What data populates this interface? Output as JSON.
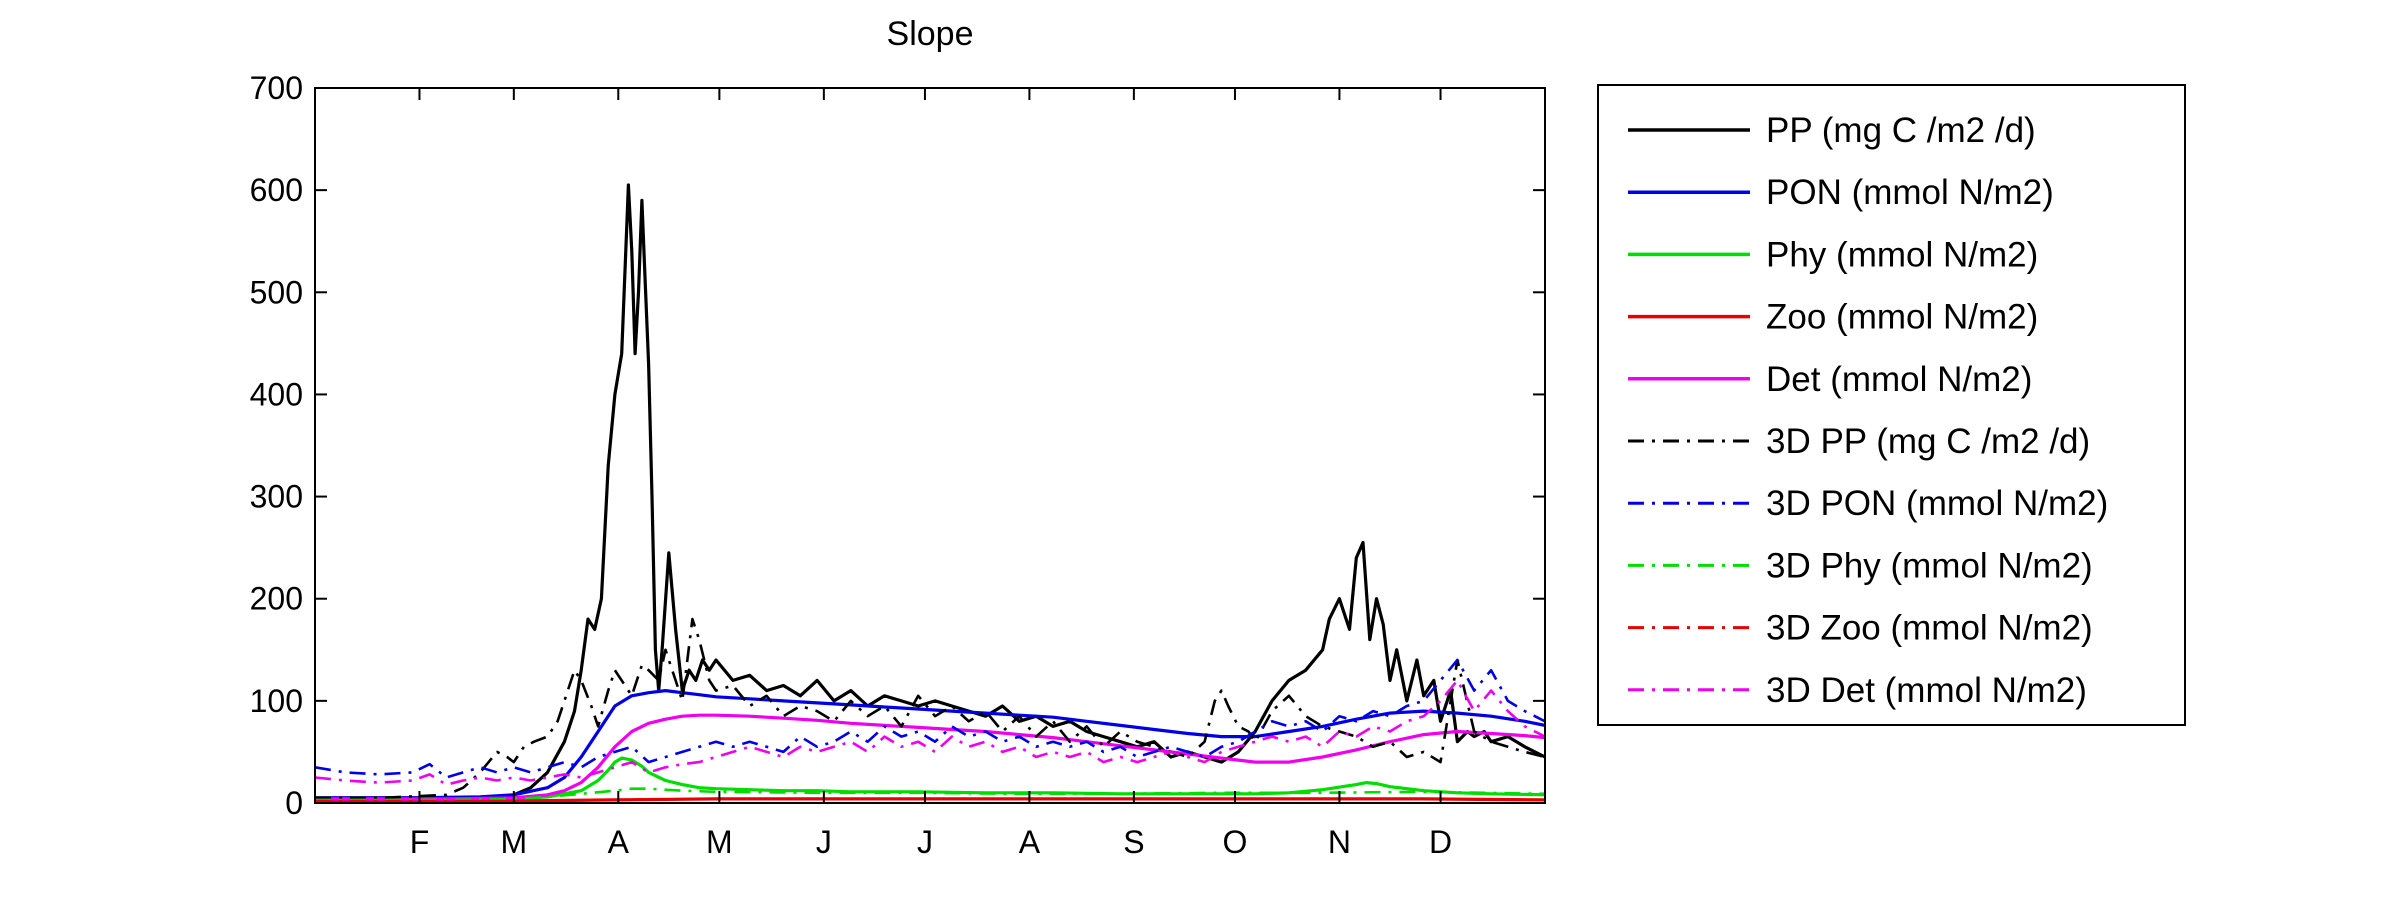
{
  "chart_data": {
    "type": "line",
    "title": "Slope",
    "xlabel": "",
    "ylabel": "",
    "xlim": [
      1,
      366
    ],
    "ylim": [
      0,
      700
    ],
    "yticks": [
      0,
      100,
      200,
      300,
      400,
      500,
      600,
      700
    ],
    "month_ticks": [
      {
        "label": "F",
        "day": 32
      },
      {
        "label": "M",
        "day": 60
      },
      {
        "label": "A",
        "day": 91
      },
      {
        "label": "M",
        "day": 121
      },
      {
        "label": "J",
        "day": 152
      },
      {
        "label": "J",
        "day": 182
      },
      {
        "label": "A",
        "day": 213
      },
      {
        "label": "S",
        "day": 244
      },
      {
        "label": "O",
        "day": 274
      },
      {
        "label": "N",
        "day": 305
      },
      {
        "label": "D",
        "day": 335
      }
    ],
    "grid": false,
    "legend_position": "outside-right",
    "series": [
      {
        "name": "PP (mg C /m2 /d)",
        "color": "#000000",
        "style": "solid",
        "x": [
          1,
          15,
          30,
          45,
          55,
          60,
          65,
          70,
          75,
          78,
          80,
          82,
          84,
          86,
          88,
          90,
          92,
          94,
          95,
          96,
          97,
          98,
          99,
          100,
          101,
          102,
          103,
          104,
          106,
          108,
          110,
          112,
          114,
          116,
          118,
          120,
          125,
          130,
          135,
          140,
          145,
          150,
          155,
          160,
          165,
          170,
          175,
          180,
          185,
          190,
          195,
          200,
          205,
          210,
          215,
          220,
          225,
          230,
          235,
          240,
          245,
          250,
          255,
          260,
          265,
          270,
          275,
          280,
          285,
          290,
          295,
          300,
          302,
          305,
          308,
          310,
          312,
          314,
          316,
          318,
          320,
          322,
          325,
          328,
          330,
          333,
          335,
          338,
          340,
          343,
          345,
          348,
          350,
          355,
          360,
          366
        ],
        "y": [
          5,
          5,
          5,
          5,
          6,
          8,
          15,
          30,
          60,
          90,
          130,
          180,
          170,
          200,
          330,
          400,
          440,
          605,
          540,
          440,
          500,
          590,
          510,
          430,
          300,
          150,
          110,
          150,
          245,
          170,
          110,
          130,
          120,
          140,
          130,
          140,
          120,
          125,
          110,
          115,
          105,
          120,
          100,
          110,
          95,
          105,
          100,
          95,
          100,
          95,
          90,
          85,
          95,
          80,
          85,
          75,
          80,
          70,
          65,
          60,
          55,
          60,
          45,
          50,
          45,
          40,
          50,
          70,
          100,
          120,
          130,
          150,
          180,
          200,
          170,
          240,
          255,
          160,
          200,
          175,
          120,
          150,
          100,
          140,
          105,
          120,
          80,
          110,
          60,
          70,
          65,
          70,
          60,
          65,
          55,
          45
        ]
      },
      {
        "name": "PON (mmol N/m2)",
        "color": "#0000e6",
        "style": "solid",
        "x": [
          1,
          30,
          50,
          60,
          70,
          75,
          80,
          85,
          90,
          95,
          100,
          105,
          110,
          115,
          120,
          130,
          140,
          150,
          160,
          170,
          180,
          190,
          200,
          210,
          220,
          230,
          240,
          250,
          260,
          270,
          280,
          290,
          300,
          310,
          320,
          330,
          340,
          350,
          360,
          366
        ],
        "y": [
          5,
          5,
          6,
          8,
          15,
          25,
          45,
          70,
          95,
          105,
          108,
          110,
          108,
          106,
          104,
          102,
          100,
          98,
          96,
          94,
          92,
          90,
          88,
          86,
          84,
          80,
          76,
          72,
          68,
          65,
          65,
          70,
          75,
          82,
          88,
          90,
          88,
          85,
          80,
          76
        ]
      },
      {
        "name": "Phy (mmol N/m2)",
        "color": "#00dd00",
        "style": "solid",
        "x": [
          1,
          40,
          60,
          70,
          80,
          85,
          88,
          90,
          92,
          95,
          98,
          100,
          105,
          110,
          115,
          120,
          130,
          140,
          150,
          160,
          180,
          200,
          220,
          240,
          260,
          280,
          290,
          300,
          310,
          313,
          316,
          320,
          330,
          340,
          350,
          366
        ],
        "y": [
          3,
          3,
          4,
          6,
          12,
          22,
          32,
          40,
          44,
          42,
          36,
          30,
          22,
          18,
          15,
          14,
          13,
          12,
          12,
          11,
          11,
          10,
          10,
          9,
          9,
          9,
          10,
          13,
          18,
          20,
          19,
          16,
          12,
          10,
          9,
          8
        ]
      },
      {
        "name": "Zoo (mmol N/m2)",
        "color": "#e60000",
        "style": "solid",
        "x": [
          1,
          60,
          90,
          120,
          150,
          180,
          210,
          240,
          270,
          300,
          330,
          366
        ],
        "y": [
          2,
          2,
          3,
          4,
          4,
          4,
          4,
          4,
          4,
          4,
          4,
          3
        ]
      },
      {
        "name": "Det (mmol N/m2)",
        "color": "#ee00ee",
        "style": "solid",
        "x": [
          1,
          40,
          60,
          70,
          75,
          80,
          85,
          90,
          95,
          100,
          105,
          110,
          115,
          120,
          130,
          140,
          150,
          160,
          170,
          180,
          190,
          200,
          210,
          220,
          230,
          240,
          250,
          260,
          270,
          280,
          290,
          300,
          310,
          320,
          330,
          340,
          350,
          360,
          366
        ],
        "y": [
          4,
          4,
          5,
          8,
          12,
          20,
          35,
          55,
          70,
          78,
          82,
          85,
          86,
          86,
          85,
          83,
          81,
          78,
          76,
          74,
          72,
          70,
          67,
          64,
          60,
          56,
          52,
          48,
          44,
          40,
          40,
          45,
          52,
          60,
          67,
          70,
          68,
          66,
          64
        ]
      },
      {
        "name": "3D PP (mg C /m2 /d)",
        "color": "#000000",
        "style": "dashdot",
        "x": [
          1,
          20,
          40,
          45,
          50,
          55,
          58,
          60,
          63,
          66,
          70,
          73,
          75,
          78,
          80,
          83,
          85,
          88,
          90,
          93,
          95,
          98,
          100,
          103,
          105,
          108,
          110,
          113,
          115,
          118,
          120,
          125,
          130,
          135,
          140,
          145,
          150,
          155,
          160,
          165,
          170,
          175,
          180,
          185,
          190,
          195,
          200,
          205,
          210,
          215,
          220,
          225,
          230,
          235,
          240,
          245,
          250,
          255,
          260,
          265,
          268,
          270,
          272,
          275,
          278,
          280,
          285,
          290,
          295,
          300,
          305,
          310,
          315,
          320,
          325,
          330,
          335,
          340,
          345,
          350,
          355,
          360,
          366
        ],
        "y": [
          5,
          5,
          8,
          15,
          30,
          50,
          45,
          40,
          55,
          60,
          65,
          80,
          100,
          130,
          120,
          95,
          75,
          110,
          130,
          115,
          105,
          135,
          130,
          120,
          150,
          120,
          100,
          180,
          160,
          120,
          110,
          115,
          95,
          105,
          85,
          95,
          90,
          80,
          100,
          85,
          95,
          75,
          105,
          85,
          95,
          80,
          90,
          70,
          85,
          65,
          80,
          60,
          75,
          55,
          70,
          60,
          55,
          50,
          45,
          60,
          100,
          110,
          95,
          75,
          70,
          60,
          90,
          105,
          85,
          75,
          70,
          65,
          55,
          60,
          45,
          50,
          40,
          140,
          70,
          60,
          55,
          50,
          45
        ]
      },
      {
        "name": "3D PON (mmol N/m2)",
        "color": "#0000e6",
        "style": "dashdot",
        "x": [
          1,
          10,
          20,
          30,
          35,
          40,
          45,
          50,
          55,
          60,
          65,
          70,
          75,
          80,
          85,
          90,
          95,
          100,
          105,
          110,
          115,
          120,
          125,
          130,
          135,
          140,
          145,
          150,
          155,
          160,
          165,
          170,
          175,
          180,
          185,
          190,
          195,
          200,
          205,
          210,
          215,
          220,
          225,
          230,
          235,
          240,
          245,
          250,
          255,
          260,
          265,
          270,
          275,
          280,
          285,
          290,
          295,
          300,
          305,
          310,
          315,
          320,
          325,
          330,
          335,
          340,
          345,
          350,
          355,
          360,
          366
        ],
        "y": [
          35,
          30,
          28,
          30,
          38,
          25,
          30,
          35,
          30,
          35,
          30,
          35,
          40,
          35,
          45,
          50,
          55,
          40,
          45,
          50,
          55,
          60,
          55,
          60,
          55,
          50,
          65,
          55,
          60,
          70,
          60,
          75,
          65,
          70,
          60,
          75,
          65,
          70,
          60,
          65,
          55,
          60,
          55,
          60,
          50,
          55,
          45,
          50,
          55,
          50,
          45,
          55,
          60,
          70,
          80,
          75,
          80,
          70,
          85,
          80,
          90,
          85,
          95,
          100,
          120,
          140,
          110,
          130,
          100,
          90,
          80
        ]
      },
      {
        "name": "3D Phy (mmol N/m2)",
        "color": "#00dd00",
        "style": "dashdot",
        "x": [
          1,
          40,
          60,
          70,
          80,
          90,
          95,
          100,
          110,
          120,
          150,
          180,
          210,
          240,
          270,
          300,
          330,
          366
        ],
        "y": [
          3,
          3,
          4,
          6,
          9,
          12,
          14,
          14,
          12,
          11,
          10,
          10,
          9,
          9,
          10,
          10,
          11,
          9
        ]
      },
      {
        "name": "3D Zoo (mmol N/m2)",
        "color": "#e60000",
        "style": "dashdot",
        "x": [
          1,
          60,
          90,
          120,
          150,
          180,
          210,
          240,
          270,
          300,
          330,
          366
        ],
        "y": [
          2,
          2,
          3,
          4,
          4,
          4,
          4,
          4,
          4,
          4,
          4,
          3
        ]
      },
      {
        "name": "3D Det (mmol N/m2)",
        "color": "#ee00ee",
        "style": "dashdot",
        "x": [
          1,
          10,
          20,
          30,
          35,
          40,
          45,
          50,
          55,
          60,
          65,
          70,
          75,
          80,
          85,
          90,
          95,
          100,
          105,
          110,
          115,
          120,
          125,
          130,
          135,
          140,
          145,
          150,
          155,
          160,
          165,
          170,
          175,
          180,
          185,
          190,
          195,
          200,
          205,
          210,
          215,
          220,
          225,
          230,
          235,
          240,
          245,
          250,
          255,
          260,
          265,
          270,
          275,
          280,
          285,
          290,
          295,
          300,
          305,
          310,
          315,
          320,
          325,
          330,
          335,
          340,
          345,
          350,
          355,
          360,
          366
        ],
        "y": [
          25,
          22,
          20,
          22,
          28,
          18,
          22,
          25,
          22,
          25,
          22,
          25,
          28,
          25,
          30,
          35,
          40,
          30,
          35,
          38,
          40,
          45,
          50,
          55,
          50,
          45,
          55,
          50,
          55,
          60,
          50,
          65,
          55,
          60,
          50,
          65,
          55,
          60,
          50,
          55,
          45,
          50,
          45,
          50,
          40,
          45,
          40,
          45,
          50,
          45,
          40,
          50,
          55,
          60,
          65,
          60,
          65,
          55,
          70,
          65,
          75,
          70,
          80,
          85,
          100,
          120,
          90,
          110,
          90,
          75,
          65
        ]
      }
    ]
  }
}
